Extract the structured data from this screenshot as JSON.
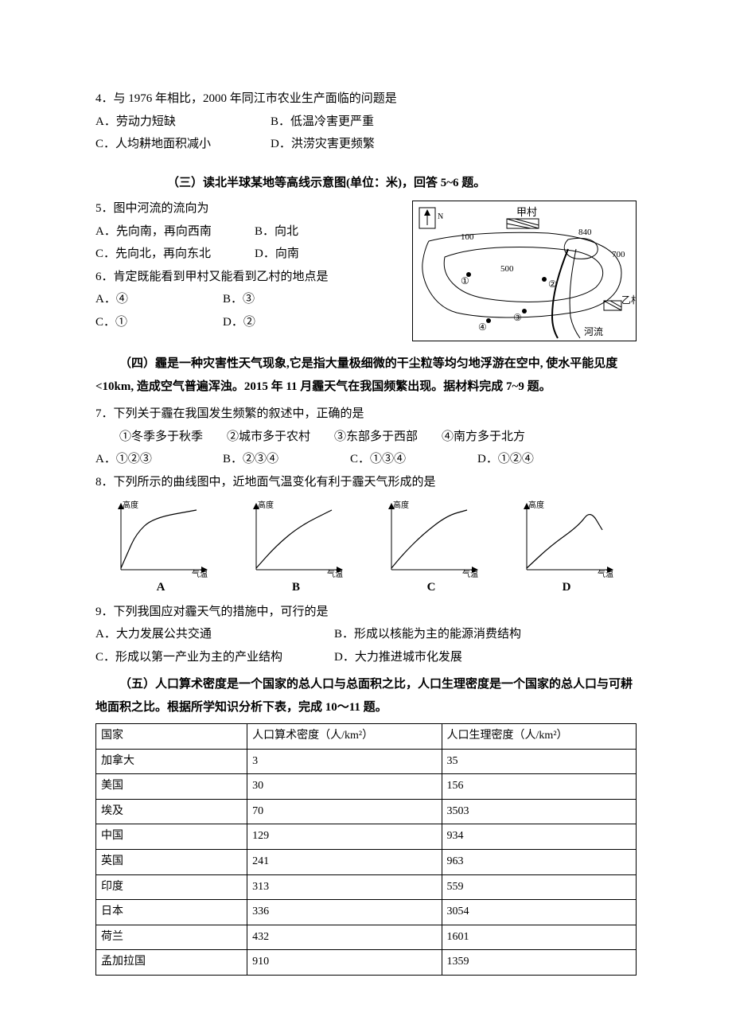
{
  "q4": {
    "stem": "4．与 1976 年相比，2000 年同江市农业生产面临的问题是",
    "A": "A．劳动力短缺",
    "B": "B．低温冷害更严重",
    "C": "C．人均耕地面积减小",
    "D": "D．洪涝灾害更频繁"
  },
  "sec3": {
    "head": "（三）读北半球某地等高线示意图(单位：米)，回答 5~6 题。",
    "map": {
      "north_label": "N",
      "village_a": "甲村",
      "village_b": "乙村",
      "river_label": "河流",
      "contours": [
        "100",
        "500",
        "840",
        "700"
      ],
      "points": [
        "①",
        "②",
        "③",
        "④"
      ]
    }
  },
  "q5": {
    "stem": "5．图中河流的流向为",
    "A": "A．先向南，再向西南",
    "B": "B．向北",
    "C": "C．先向北，再向东北",
    "D": "D．向南"
  },
  "q6": {
    "stem": "6．肯定既能看到甲村又能看到乙村的地点是",
    "A": "A．④",
    "B": "B．③",
    "C": "C．①",
    "D": "D．②"
  },
  "sec4": {
    "head": "（四）霾是一种灾害性天气现象,它是指大量极细微的干尘粒等均匀地浮游在空中, 使水平能见度<10km, 造成空气普遍浑浊。2015 年 11 月霾天气在我国频繁出现。据材料完成 7~9 题。"
  },
  "q7": {
    "stem": "7．下列关于霾在我国发生频繁的叙述中，正确的是",
    "sub": "①冬季多于秋季　　②城市多于农村　　③东部多于西部　　④南方多于北方",
    "A": "A．①②③",
    "B": "B．②③④",
    "C": "C．①③④",
    "D": "D．①②④"
  },
  "q8": {
    "stem": "8．下列所示的曲线图中，近地面气温变化有利于霾天气形成的是",
    "charts": {
      "y_label": "高度",
      "x_label": "气温",
      "axis_color": "#000000",
      "curve_color": "#000000",
      "background": "#ffffff",
      "labels": [
        "A",
        "B",
        "C",
        "D"
      ],
      "A": {
        "type": "curve",
        "points": [
          [
            15,
            12
          ],
          [
            22,
            28
          ],
          [
            34,
            55
          ],
          [
            55,
            75
          ],
          [
            110,
            85
          ]
        ]
      },
      "B": {
        "type": "curve",
        "points": [
          [
            15,
            12
          ],
          [
            40,
            40
          ],
          [
            70,
            65
          ],
          [
            110,
            85
          ]
        ]
      },
      "C": {
        "type": "curve",
        "points": [
          [
            15,
            12
          ],
          [
            30,
            30
          ],
          [
            55,
            55
          ],
          [
            85,
            78
          ],
          [
            110,
            85
          ]
        ]
      },
      "D": {
        "type": "curve",
        "points": [
          [
            15,
            12
          ],
          [
            45,
            40
          ],
          [
            80,
            65
          ],
          [
            95,
            85
          ],
          [
            110,
            60
          ]
        ]
      }
    }
  },
  "q9": {
    "stem": "9．下列我国应对霾天气的措施中，可行的是",
    "A": "A．大力发展公共交通",
    "B": "B．形成以核能为主的能源消费结构",
    "C": "C．形成以第一产业为主的产业结构",
    "D": "D．大力推进城市化发展"
  },
  "sec5": {
    "head": "（五）人口算术密度是一个国家的总人口与总面积之比，人口生理密度是一个国家的总人口与可耕地面积之比。根据所学知识分析下表，完成 10～11 题。"
  },
  "table": {
    "columns": [
      "国家",
      "人口算术密度（人/km²）",
      "人口生理密度（人/km²）"
    ],
    "rows": [
      [
        "加拿大",
        "3",
        "35"
      ],
      [
        "美国",
        "30",
        "156"
      ],
      [
        "埃及",
        "70",
        "3503"
      ],
      [
        "中国",
        "129",
        "934"
      ],
      [
        "英国",
        "241",
        "963"
      ],
      [
        "印度",
        "313",
        "559"
      ],
      [
        "日本",
        "336",
        "3054"
      ],
      [
        "荷兰",
        "432",
        "1601"
      ],
      [
        "孟加拉国",
        "910",
        "1359"
      ]
    ],
    "col_widths": [
      "28%",
      "36%",
      "36%"
    ]
  }
}
